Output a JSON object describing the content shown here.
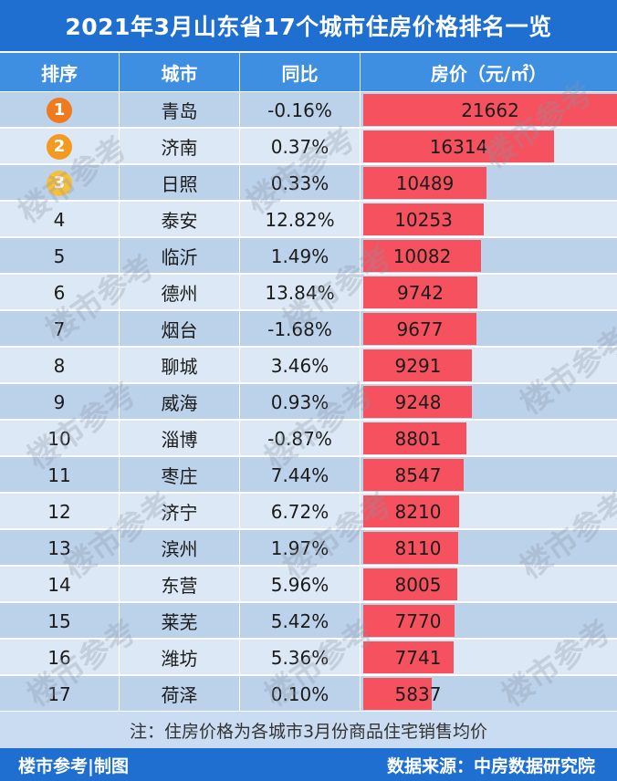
{
  "title": "2021年3月山东省17个城市住房价格排名一览",
  "headers": {
    "rank": "排序",
    "city": "城市",
    "yoy": "同比",
    "price": "房价（元/㎡）"
  },
  "colors": {
    "header_bg": "#1f6fd0",
    "subheader_bg": "#3e8ee2",
    "row_dark": "#bcd2ea",
    "row_light": "#dce8f5",
    "bar": "#f5515e",
    "medal_1": "#f07a1e",
    "medal_2": "#f39a22",
    "medal_3": "#f6c03a"
  },
  "note": "注：住房价格为各城市3月份商品住宅销售均价",
  "footer": {
    "left": "楼市参考|制图",
    "right": "数据来源：中房数据研究院"
  },
  "watermark": "楼市参考",
  "chart_data": {
    "type": "bar",
    "title": "2021年3月山东省17个城市住房价格排名一览",
    "ylabel": "房价（元/㎡）",
    "categories": [
      "青岛",
      "济南",
      "日照",
      "泰安",
      "临沂",
      "德州",
      "烟台",
      "聊城",
      "威海",
      "淄博",
      "枣庄",
      "济宁",
      "滨州",
      "东营",
      "莱芜",
      "潍坊",
      "荷泽"
    ],
    "ranks": [
      "1",
      "2",
      "3",
      "4",
      "5",
      "6",
      "7",
      "8",
      "9",
      "10",
      "11",
      "12",
      "13",
      "14",
      "15",
      "16",
      "17"
    ],
    "yoy": [
      "-0.16%",
      "0.37%",
      "0.33%",
      "12.82%",
      "1.49%",
      "13.84%",
      "-1.68%",
      "3.46%",
      "0.93%",
      "-0.87%",
      "7.44%",
      "6.72%",
      "1.97%",
      "5.96%",
      "5.42%",
      "5.36%",
      "0.10%"
    ],
    "values": [
      21662,
      16314,
      10489,
      10253,
      10082,
      9742,
      9677,
      9291,
      9248,
      8801,
      8547,
      8210,
      8110,
      8005,
      7770,
      7741,
      5837
    ],
    "ylim": [
      0,
      21662
    ]
  }
}
